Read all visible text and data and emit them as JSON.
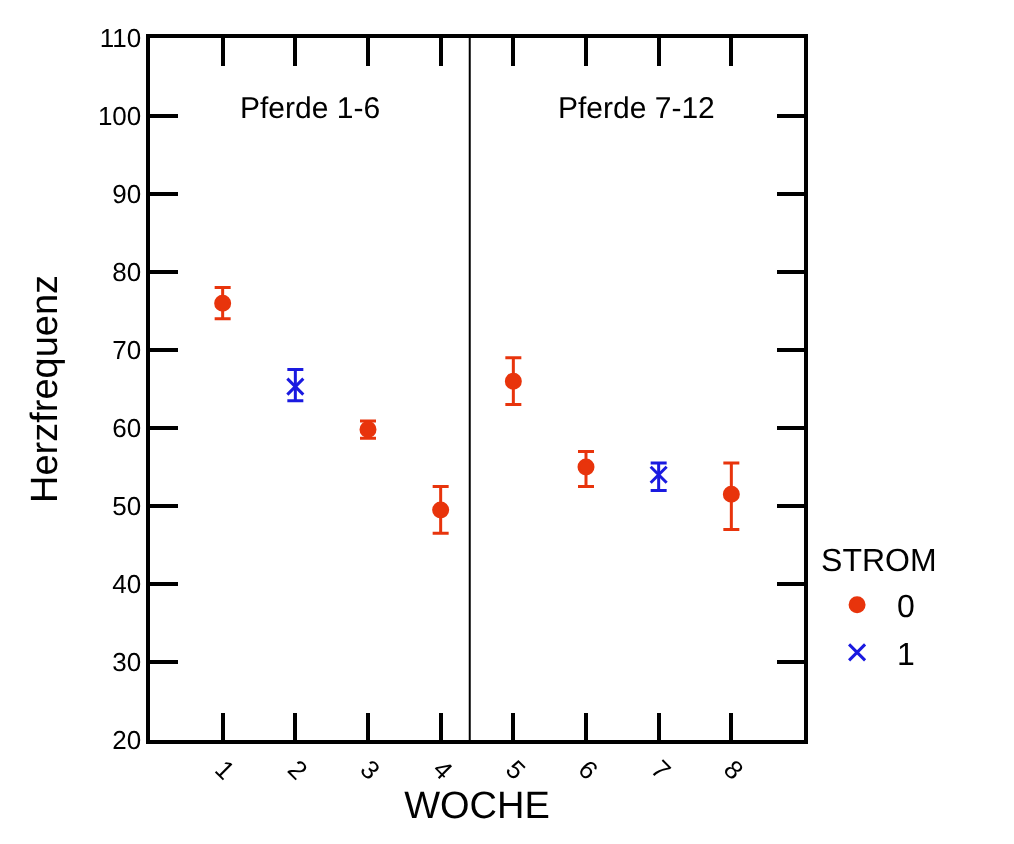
{
  "chart_data": {
    "type": "scatter",
    "xlabel": "WOCHE",
    "ylabel": "Herzfrequenz",
    "legend_title": "STROM",
    "legend": "right",
    "xlim": [
      0,
      9
    ],
    "xticks": [
      1,
      2,
      3,
      4,
      5,
      6,
      7,
      8
    ],
    "ylim": [
      20,
      110
    ],
    "yticks": [
      20,
      30,
      40,
      50,
      60,
      70,
      80,
      90,
      100,
      110
    ],
    "series": [
      {
        "name": "0",
        "color": "#e8340c",
        "marker": "circle",
        "x": [
          1,
          3,
          4,
          5,
          6,
          8
        ],
        "values": [
          76,
          59.8,
          49.5,
          66,
          55,
          51.5
        ],
        "errors": [
          [
            74,
            78
          ],
          [
            58.7,
            60.9
          ],
          [
            46.5,
            52.5
          ],
          [
            63,
            69
          ],
          [
            52.5,
            57
          ],
          [
            47,
            55.5
          ]
        ]
      },
      {
        "name": "1",
        "color": "#1a1ae0",
        "marker": "cross",
        "x": [
          2,
          7
        ],
        "values": [
          65.3,
          54
        ],
        "errors": [
          [
            63.5,
            67.5
          ],
          [
            52,
            55.5
          ]
        ]
      }
    ],
    "ref_lines": [
      {
        "axis": "x",
        "value": 4.4,
        "color": "#000000"
      }
    ],
    "annotations": [
      "Pferde 1-6",
      "Pferde 7-12"
    ]
  }
}
